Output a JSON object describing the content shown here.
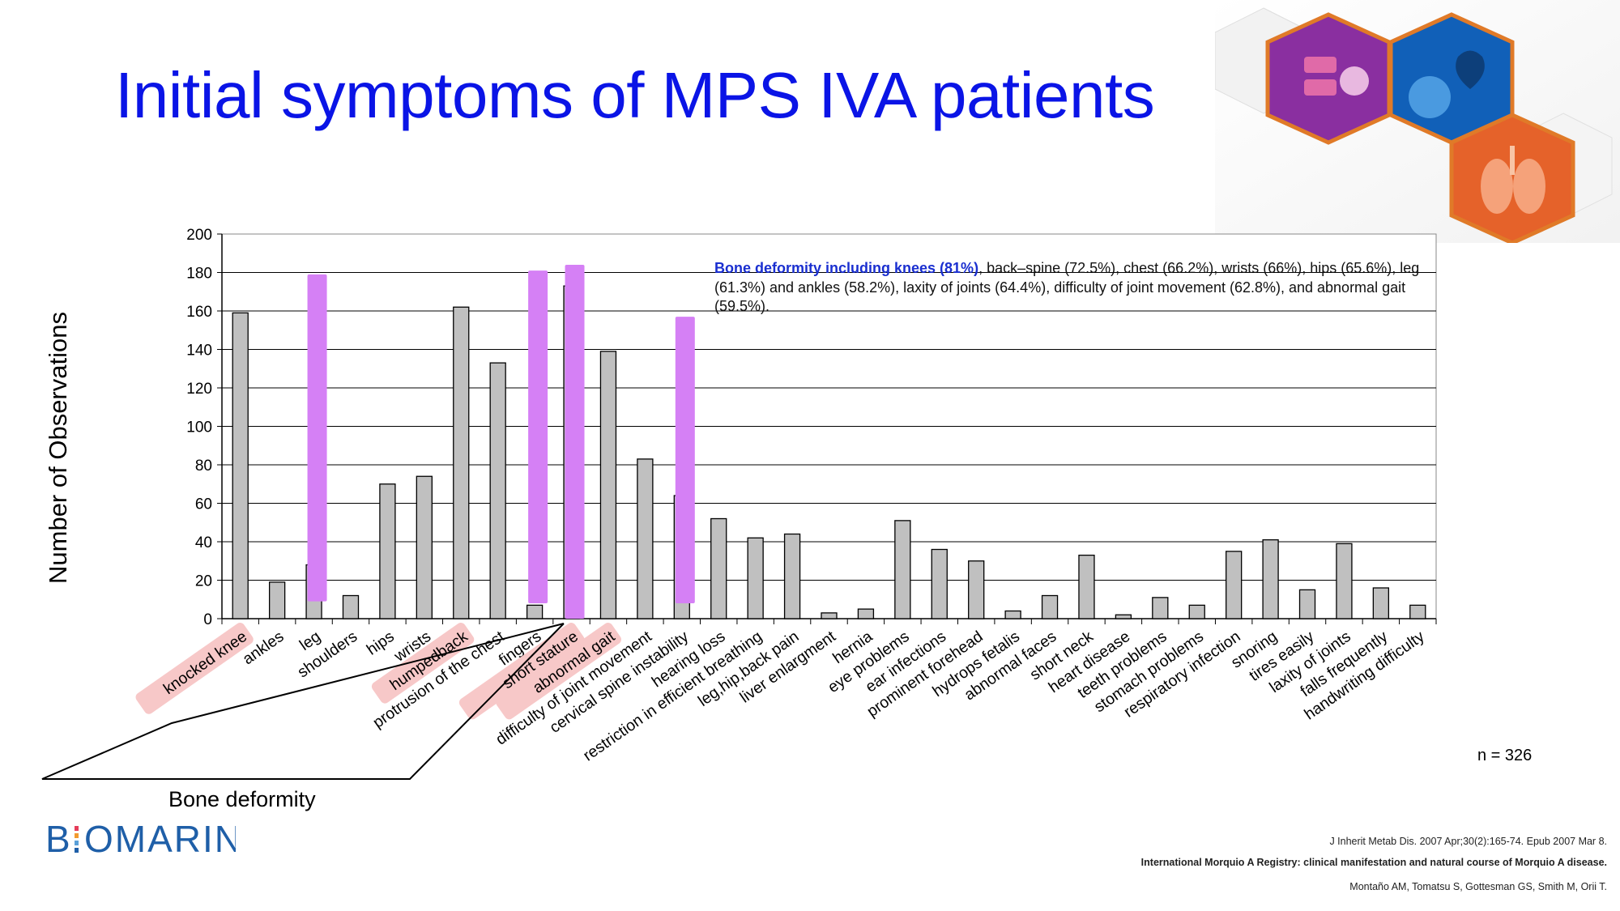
{
  "slide": {
    "title": "Initial symptoms of MPS IVA patients",
    "logo_text": "B OMARIN",
    "n_label": "n = 326",
    "group_label": "Bone deformity",
    "annotation": {
      "highlight": "Bone deformity including knees (81%)",
      "rest": ", back–spine (72.5%), chest (66.2%), wrists (66%), hips (65.6%), leg (61.3%) and ankles (58.2%), laxity of joints (64.4%), difficulty of joint movement (62.8%), and abnormal gait (59.5%)."
    },
    "references": [
      "J Inherit Metab Dis. 2007 Apr;30(2):165-74. Epub 2007 Mar 8.",
      "International Morquio A Registry: clinical manifestation and natural course of Morquio A disease.",
      "Montaño AM, Tomatsu S, Gottesman GS, Smith M, Orii T."
    ],
    "colors": {
      "title": "#0a14e6",
      "bar_fill": "#c0c0c0",
      "overlay_bar": "#d580f5",
      "highlight_label": "#f7c8c8",
      "logo": "#1f5fa8"
    }
  },
  "chart_data": {
    "type": "bar",
    "ylabel": "Number of Observations",
    "xlabel": "",
    "ylim": [
      0,
      200
    ],
    "yticks": [
      0,
      20,
      40,
      60,
      80,
      100,
      120,
      140,
      160,
      180,
      200
    ],
    "grid": true,
    "categories": [
      "knocked knee",
      "ankles",
      "leg",
      "shoulders",
      "hips",
      "wrists",
      "humpedback",
      "protrusion of the chest",
      "fingers",
      "short stature",
      "abnormal gait",
      "difficulty of joint movement",
      "cervical spine instability",
      "hearing  loss",
      "restriction in efficient breathing",
      "leg,hip,back pain",
      "liver enlargment",
      "hernia",
      "eye problems",
      "ear infections",
      "prominent forehead",
      "hydrops fetalis",
      "abnormal faces",
      "short neck",
      "heart disease",
      "teeth problems",
      "stomach problems",
      "respiratory infection",
      "snoring",
      "tires easily",
      "laxity of joints",
      "falls frequently",
      "handwriting difficulty"
    ],
    "values": [
      159,
      19,
      28,
      12,
      70,
      74,
      162,
      133,
      7,
      173,
      139,
      83,
      64,
      52,
      42,
      44,
      3,
      5,
      51,
      36,
      30,
      4,
      12,
      33,
      2,
      11,
      7,
      35,
      41,
      15,
      39,
      16,
      7
    ],
    "highlighted_categories": [
      "knocked knee",
      "humpedback",
      "short stature",
      "abnormal gait"
    ],
    "overlay_bars": [
      {
        "category": "leg",
        "from": 9,
        "to": 179
      },
      {
        "category": "fingers",
        "from": 8,
        "to": 181
      },
      {
        "category": "short stature",
        "from": 0,
        "to": 184
      },
      {
        "category": "cervical spine instability",
        "from": 8,
        "to": 157
      }
    ]
  }
}
